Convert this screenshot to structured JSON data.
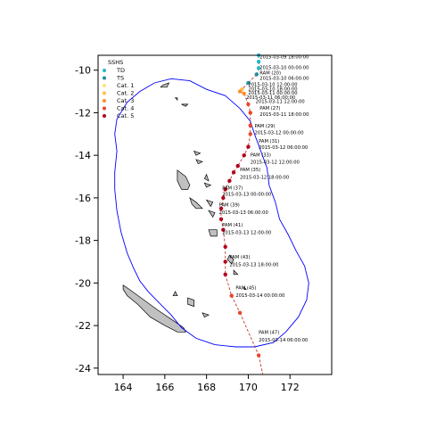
{
  "chart_data": {
    "type": "scatter",
    "xlim": [
      162.8,
      174
    ],
    "ylim": [
      -24.3,
      -9.3
    ],
    "x_ticks": [
      164,
      166,
      168,
      170,
      172
    ],
    "y_ticks": [
      -10,
      -12,
      -14,
      -16,
      -18,
      -20,
      -22,
      -24
    ],
    "x_tick_labels": [
      "164",
      "166",
      "168",
      "170",
      "172"
    ],
    "y_tick_labels": [
      "-10",
      "-12",
      "-14",
      "-16",
      "-18",
      "-20",
      "-22",
      "-24"
    ],
    "grid": false,
    "legend": {
      "title": "SSHS",
      "placement": "top-left",
      "entries": [
        {
          "label": "TD",
          "color": "#22b8cf"
        },
        {
          "label": "TS",
          "color": "#1e90a8"
        },
        {
          "label": "Cat. 1",
          "color": "#ffe27a"
        },
        {
          "label": "Cat. 2",
          "color": "#ffc04d"
        },
        {
          "label": "Cat. 3",
          "color": "#ff8c2a"
        },
        {
          "label": "Cat. 4",
          "color": "#e8452c"
        },
        {
          "label": "Cat. 5",
          "color": "#b3001b"
        }
      ]
    },
    "track_line_color": "#c0392b",
    "boundary_color": "#0000ff",
    "land_color": "#c0c0c0",
    "track_points": [
      {
        "lon": 170.5,
        "lat": -9.3,
        "cat": 0
      },
      {
        "lon": 170.5,
        "lat": -9.6,
        "cat": 0
      },
      {
        "lon": 170.5,
        "lat": -9.9,
        "cat": 0
      },
      {
        "lon": 170.4,
        "lat": -10.2,
        "cat": 1
      },
      {
        "lon": 170.0,
        "lat": -10.6,
        "cat": 1
      },
      {
        "lon": 169.7,
        "lat": -10.9,
        "cat": 3
      },
      {
        "lon": 169.6,
        "lat": -11.0,
        "cat": 4
      },
      {
        "lon": 169.8,
        "lat": -11.1,
        "cat": 4
      },
      {
        "lon": 170.0,
        "lat": -11.6,
        "cat": 5
      },
      {
        "lon": 170.1,
        "lat": -12.0,
        "cat": 5
      },
      {
        "lon": 170.1,
        "lat": -12.6,
        "cat": 5
      },
      {
        "lon": 170.1,
        "lat": -13.0,
        "cat": 5
      },
      {
        "lon": 170.0,
        "lat": -13.6,
        "cat": 6
      },
      {
        "lon": 169.8,
        "lat": -14.0,
        "cat": 6
      },
      {
        "lon": 169.5,
        "lat": -14.5,
        "cat": 6
      },
      {
        "lon": 169.3,
        "lat": -14.8,
        "cat": 6
      },
      {
        "lon": 169.1,
        "lat": -15.2,
        "cat": 6
      },
      {
        "lon": 168.9,
        "lat": -15.6,
        "cat": 6
      },
      {
        "lon": 168.8,
        "lat": -16.0,
        "cat": 6
      },
      {
        "lon": 168.7,
        "lat": -16.5,
        "cat": 6
      },
      {
        "lon": 168.7,
        "lat": -17.0,
        "cat": 6
      },
      {
        "lon": 168.8,
        "lat": -17.5,
        "cat": 6
      },
      {
        "lon": 168.9,
        "lat": -18.3,
        "cat": 6
      },
      {
        "lon": 168.9,
        "lat": -19.0,
        "cat": 6
      },
      {
        "lon": 168.9,
        "lat": -19.6,
        "cat": 6
      },
      {
        "lon": 169.2,
        "lat": -20.6,
        "cat": 5
      },
      {
        "lon": 169.6,
        "lat": -21.4,
        "cat": 5
      },
      {
        "lon": 170.5,
        "lat": -23.4,
        "cat": 5
      }
    ],
    "annotations": [
      {
        "text": "2015-03-09 18:00:00",
        "lon": 170.55,
        "lat": -9.45
      },
      {
        "text": "2015-03-10 00:00:00",
        "lon": 170.55,
        "lat": -9.95
      },
      {
        "text": "RAM (20)",
        "lon": 170.55,
        "lat": -10.2
      },
      {
        "text": "2015-03-10 06:00:00",
        "lon": 170.55,
        "lat": -10.45
      },
      {
        "text": "2015-03-10 12:00:00",
        "lon": 170.0,
        "lat": -10.75
      },
      {
        "text": "2015-03-10 18:00:00",
        "lon": 170.0,
        "lat": -10.95
      },
      {
        "text": "2015-03-11 00:00:00",
        "lon": 170.0,
        "lat": -11.15
      },
      {
        "text": "2015-03-11 06:00:00",
        "lon": 169.9,
        "lat": -11.35
      },
      {
        "text": "2015-03-11 12:00:00",
        "lon": 170.35,
        "lat": -11.55
      },
      {
        "text": "PAM (27)",
        "lon": 170.55,
        "lat": -11.85
      },
      {
        "text": "2015-03-11 18:00:00",
        "lon": 170.55,
        "lat": -12.15
      },
      {
        "text": "PAM (29)",
        "lon": 170.3,
        "lat": -12.7
      },
      {
        "text": "2015-03-12 00:00:00",
        "lon": 170.3,
        "lat": -13.0
      },
      {
        "text": "PAM (31)",
        "lon": 170.5,
        "lat": -13.4
      },
      {
        "text": "2015-03-12 06:00:00",
        "lon": 170.5,
        "lat": -13.7
      },
      {
        "text": "PAM (33)",
        "lon": 170.1,
        "lat": -14.05
      },
      {
        "text": "2015-03-12 12:00:00",
        "lon": 170.1,
        "lat": -14.4
      },
      {
        "text": "PAM (35)",
        "lon": 169.6,
        "lat": -14.75
      },
      {
        "text": "2015-03-12 18:00:00",
        "lon": 169.6,
        "lat": -15.1
      },
      {
        "text": "PAM (37)",
        "lon": 168.75,
        "lat": -15.6
      },
      {
        "text": "2015-03-13 00:00:00",
        "lon": 168.75,
        "lat": -15.9
      },
      {
        "text": "PAM (39)",
        "lon": 168.6,
        "lat": -16.4
      },
      {
        "text": "2015-03-13 06:00:00",
        "lon": 168.6,
        "lat": -16.75
      },
      {
        "text": "PAM (41)",
        "lon": 168.75,
        "lat": -17.35
      },
      {
        "text": "2015-03-13 12:00:00",
        "lon": 168.75,
        "lat": -17.7
      },
      {
        "text": "PAM (43)",
        "lon": 169.1,
        "lat": -18.85
      },
      {
        "text": "2015-03-13 18:00:00",
        "lon": 169.1,
        "lat": -19.2
      },
      {
        "text": "PAM (45)",
        "lon": 169.4,
        "lat": -20.3
      },
      {
        "text": "2015-03-14 00:00:00",
        "lon": 169.4,
        "lat": -20.65
      },
      {
        "text": "PAM (47)",
        "lon": 170.5,
        "lat": -22.4
      },
      {
        "text": "2015-03-14 06:00:00",
        "lon": 170.5,
        "lat": -22.75
      }
    ]
  }
}
